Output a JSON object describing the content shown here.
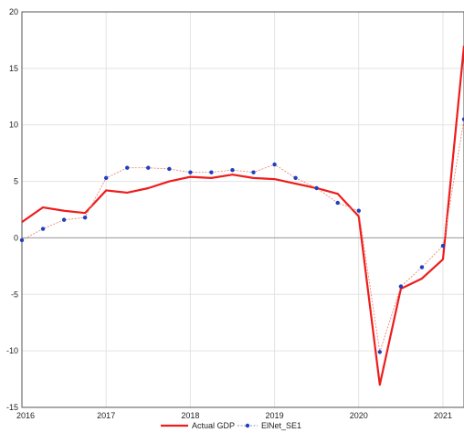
{
  "chart_data": {
    "type": "line",
    "xlim": [
      2016,
      2021.25
    ],
    "ylim": [
      -15,
      20
    ],
    "xticks": [
      2016,
      2017,
      2018,
      2019,
      2020,
      2021
    ],
    "xtick_labels": [
      "2016",
      "2017",
      "2018",
      "2019",
      "2020",
      "2021"
    ],
    "yticks": [
      20,
      15,
      10,
      5,
      0,
      -5,
      -10,
      -15
    ],
    "ytick_labels": [
      "20",
      "15",
      "10",
      "5",
      "0",
      "-5",
      "-10",
      "-15"
    ],
    "grid": true,
    "zero_line": true,
    "legend_position": "bottom-center",
    "series": [
      {
        "name": "Actual GDP",
        "color": "#ee1c1c",
        "marker": "none",
        "x": [
          2016,
          2016.25,
          2016.5,
          2016.75,
          2017,
          2017.25,
          2017.5,
          2017.75,
          2018,
          2018.25,
          2018.5,
          2018.75,
          2019,
          2019.25,
          2019.5,
          2019.75,
          2020,
          2020.25,
          2020.5,
          2020.75,
          2021,
          2021.25
        ],
        "y": [
          1.4,
          2.7,
          2.4,
          2.2,
          4.2,
          4.0,
          4.4,
          5.0,
          5.4,
          5.3,
          5.6,
          5.3,
          5.2,
          4.8,
          4.4,
          3.9,
          1.9,
          -13.0,
          -4.5,
          -3.6,
          -1.9,
          17.0
        ]
      },
      {
        "name": "ElNet_SE1",
        "color": "#1f3fbf",
        "marker": "dot",
        "x": [
          2016,
          2016.25,
          2016.5,
          2016.75,
          2017,
          2017.25,
          2017.5,
          2017.75,
          2018,
          2018.25,
          2018.5,
          2018.75,
          2019,
          2019.25,
          2019.5,
          2019.75,
          2020,
          2020.25,
          2020.5,
          2020.75,
          2021,
          2021.25
        ],
        "y": [
          -0.2,
          0.8,
          1.6,
          1.8,
          5.3,
          6.2,
          6.2,
          6.1,
          5.8,
          5.8,
          6.0,
          5.8,
          6.5,
          5.3,
          4.4,
          3.1,
          2.4,
          -10.1,
          -4.3,
          -2.6,
          -0.7,
          10.5
        ]
      }
    ]
  }
}
